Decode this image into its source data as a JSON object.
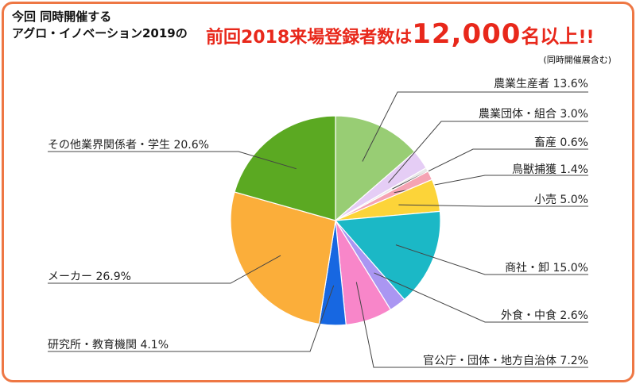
{
  "header": {
    "line1": "今回 同時開催する",
    "line2": "アグロ・イノベーション2019の",
    "headline_prefix": "前回2018来場登録者数は",
    "headline_number": "12,000",
    "headline_suffix": "名以上",
    "headline_bang": "!!",
    "note": "(同時開催展含む)"
  },
  "colors": {
    "frame": "#ee7744",
    "headline": "#e8281b"
  },
  "chart_data": {
    "type": "pie",
    "start": "12 o'clock, clockwise",
    "slices": [
      {
        "label": "農業生産者",
        "value": 13.6,
        "display": "13.6%",
        "color": "#98cd74"
      },
      {
        "label": "農業団体・組合",
        "value": 3.0,
        "display": "3.0%",
        "color": "#e5cdf5"
      },
      {
        "label": "畜産",
        "value": 0.6,
        "display": "0.6%",
        "color": "#e8e8e8"
      },
      {
        "label": "鳥獣捕獲",
        "value": 1.4,
        "display": "1.4%",
        "color": "#f5a3b3"
      },
      {
        "label": "小売",
        "value": 5.0,
        "display": "5.0%",
        "color": "#fcd439"
      },
      {
        "label": "商社・卸",
        "value": 15.0,
        "display": "15.0%",
        "color": "#1bb8c6"
      },
      {
        "label": "外食・中食",
        "value": 2.6,
        "display": "2.6%",
        "color": "#aa96f2"
      },
      {
        "label": "官公庁・団体・地方自治体",
        "value": 7.2,
        "display": "7.2%",
        "color": "#f886c9"
      },
      {
        "label": "研究所・教育機関",
        "value": 4.1,
        "display": "4.1%",
        "color": "#1767e1"
      },
      {
        "label": "メーカー",
        "value": 26.9,
        "display": "26.9%",
        "color": "#fbae3a"
      },
      {
        "label": "その他業界関係者・学生",
        "value": 20.6,
        "display": "20.6%",
        "color": "#5ba922"
      }
    ]
  }
}
